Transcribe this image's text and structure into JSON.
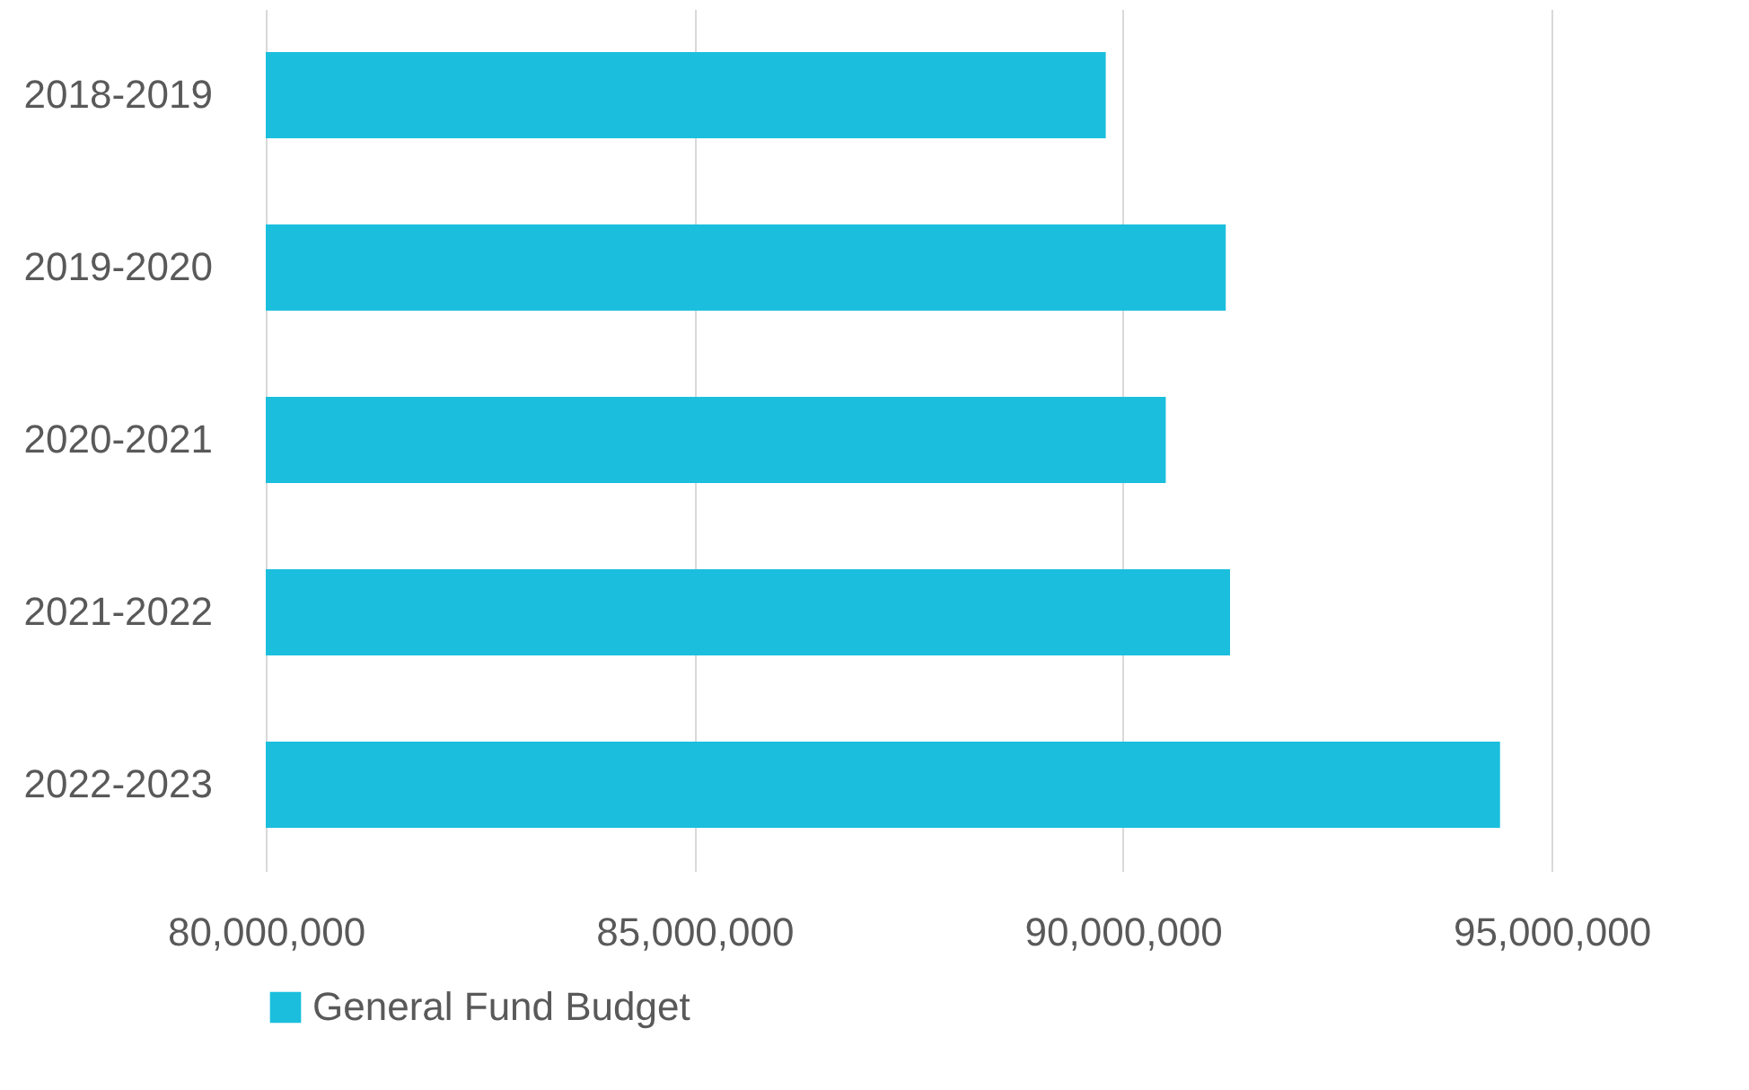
{
  "chart_data": {
    "type": "bar",
    "orientation": "horizontal",
    "categories": [
      "2018-2019",
      "2019-2020",
      "2020-2021",
      "2021-2022",
      "2022-2023"
    ],
    "series": [
      {
        "name": "General Fund Budget",
        "color": "#1bbfdd",
        "values": [
          89800000,
          91200000,
          90500000,
          91250000,
          94400000
        ]
      }
    ],
    "xlim": [
      80000000,
      95000000
    ],
    "xticks": [
      {
        "value": 80000000,
        "label": "80,000,000"
      },
      {
        "value": 85000000,
        "label": "85,000,000"
      },
      {
        "value": 90000000,
        "label": "90,000,000"
      },
      {
        "value": 95000000,
        "label": "95,000,000"
      }
    ],
    "grid": "x",
    "legend": "bottom"
  }
}
